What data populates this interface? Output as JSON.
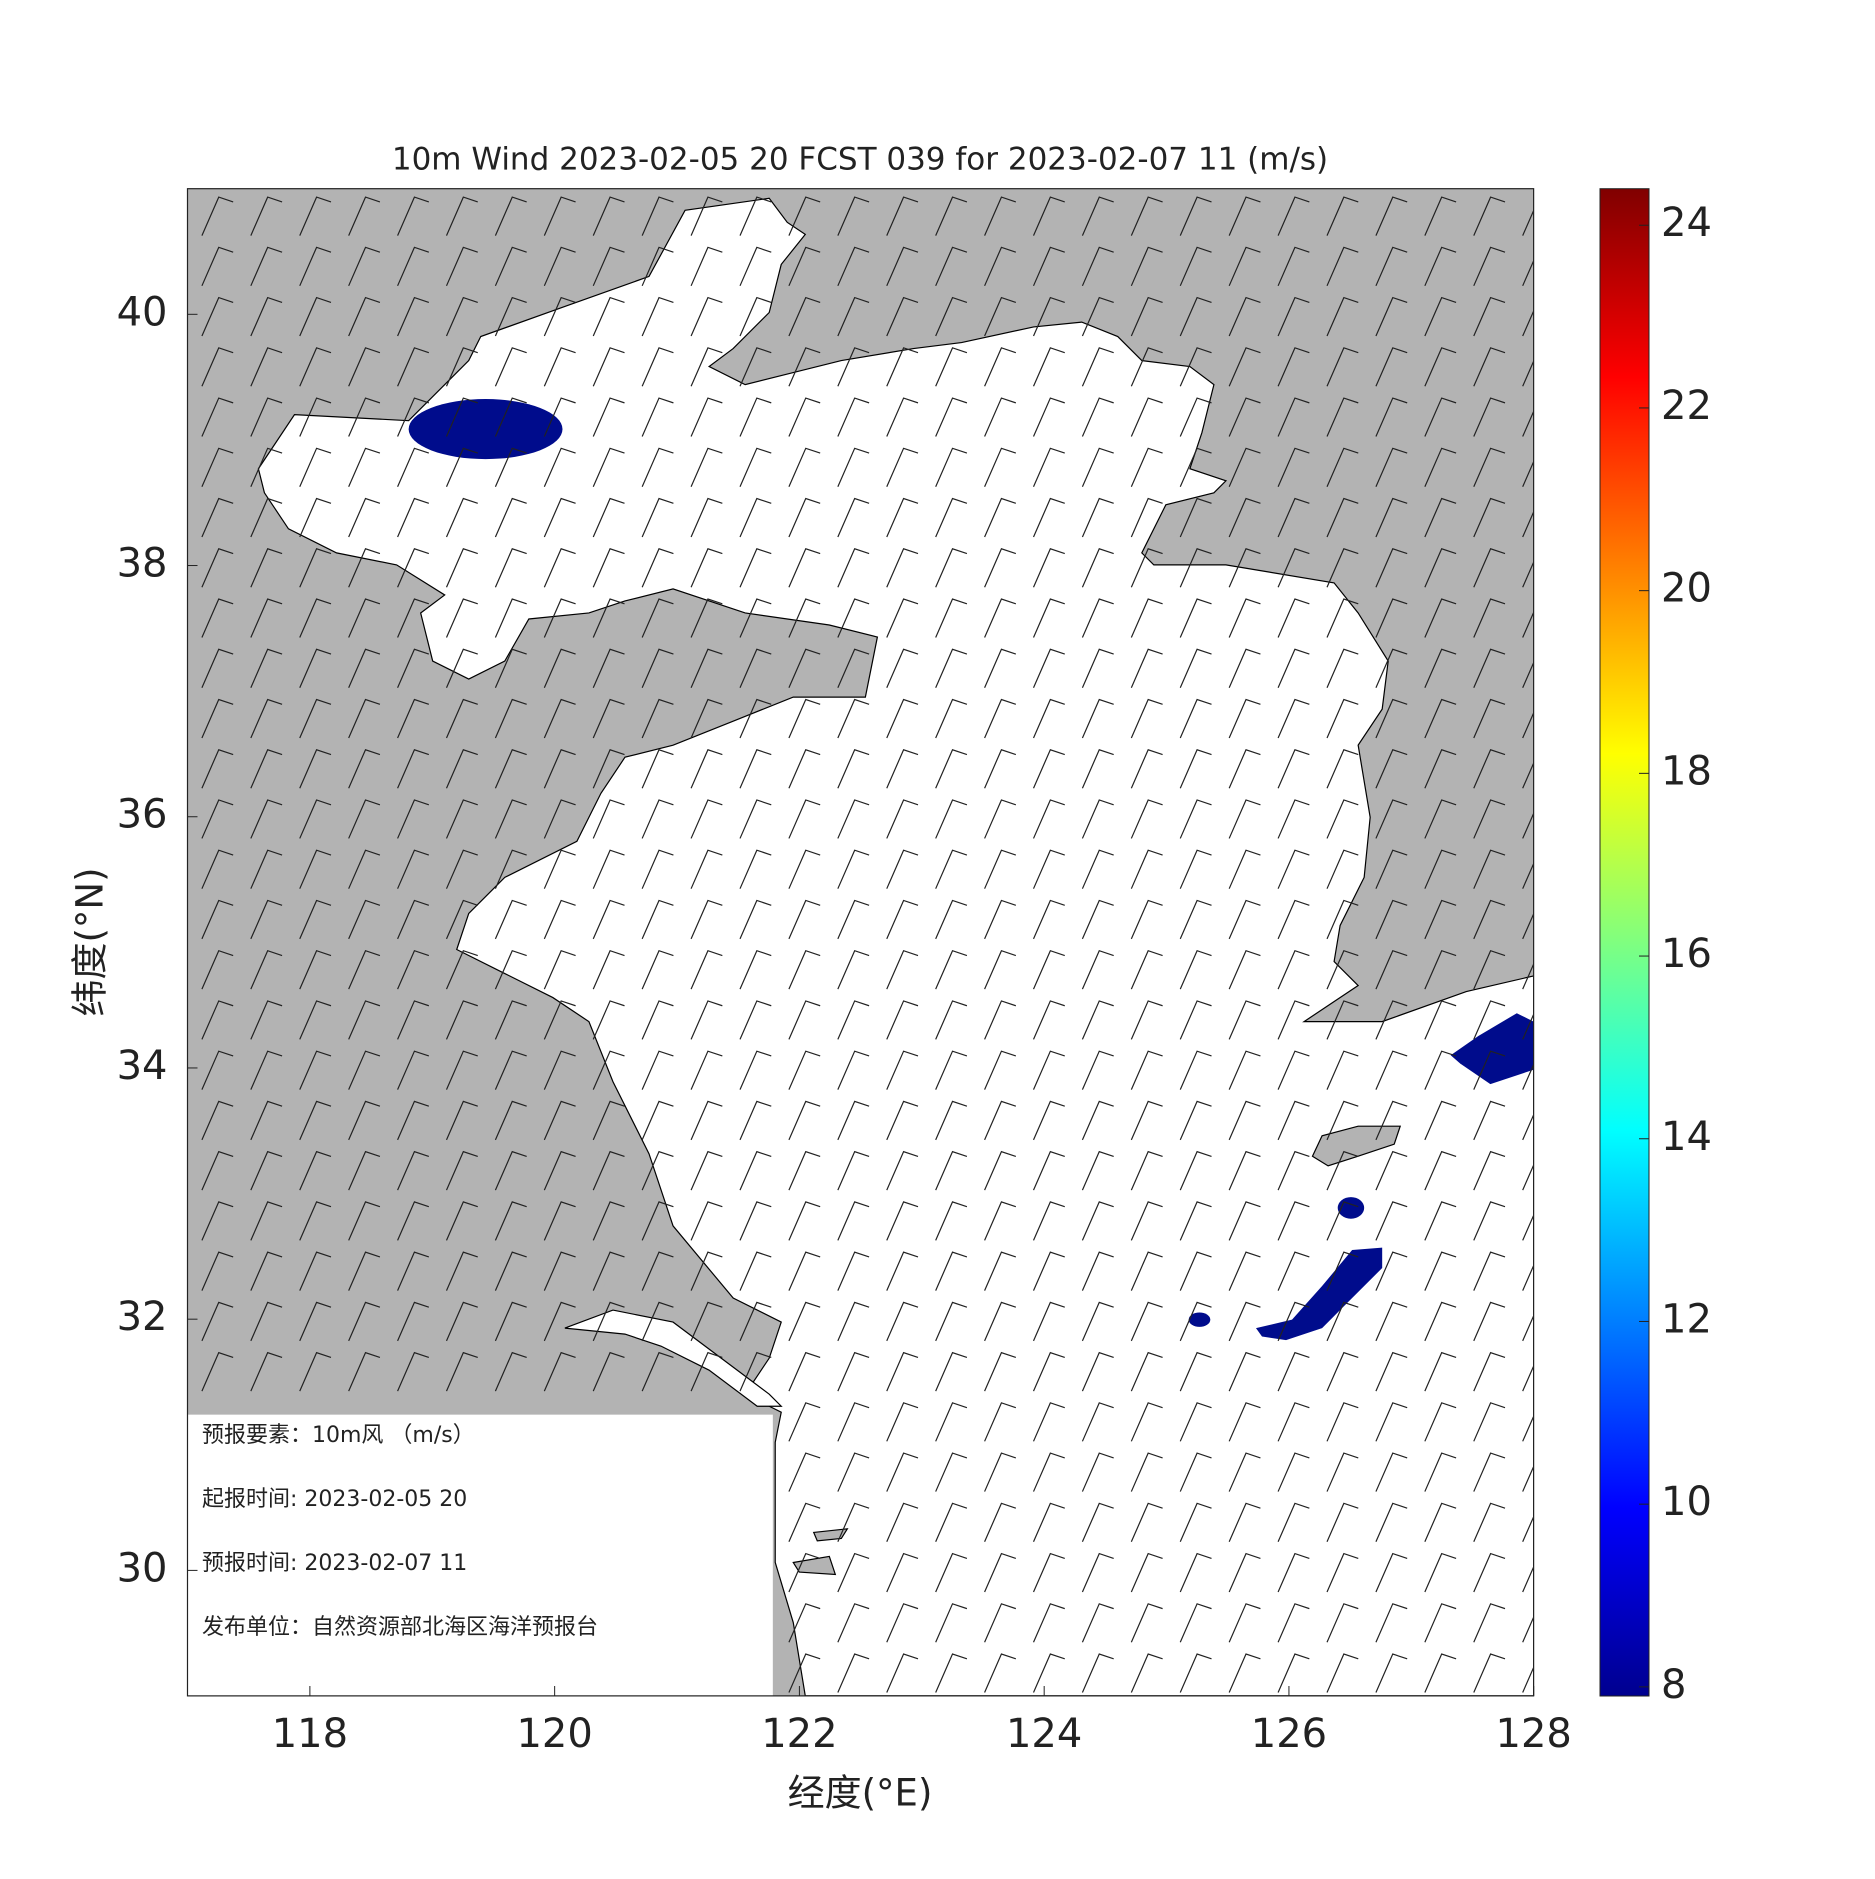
{
  "title": "10m Wind 2023-02-05 20 FCST 039 for 2023-02-07 11 (m/s)",
  "x_label": "经度(°E)",
  "y_label": "纬度(°N)",
  "xlim": [
    117,
    128
  ],
  "ylim": [
    29,
    41
  ],
  "xticks": [
    118,
    120,
    122,
    124,
    126,
    128
  ],
  "yticks": [
    30,
    32,
    34,
    36,
    38,
    40
  ],
  "colorbar": {
    "lim": [
      7.9,
      24.4
    ],
    "ticks": [
      8,
      10,
      12,
      14,
      16,
      18,
      20,
      22,
      24
    ]
  },
  "info": [
    "预报要素：10m风 （m/s）",
    "起报时间: 2023-02-05 20",
    "预报时间: 2023-02-07 11",
    "发布单位：自然资源部北海区海洋预报台"
  ]
}
